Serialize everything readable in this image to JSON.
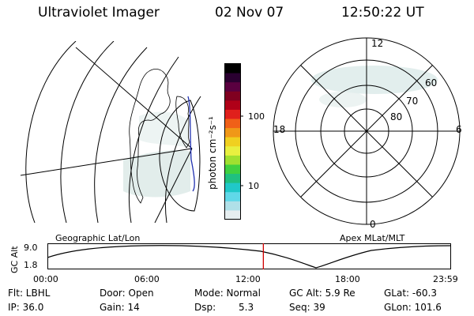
{
  "header": {
    "instrument": "Ultraviolet Imager",
    "date": "02 Nov 07",
    "time": "12:50:22 UT"
  },
  "colorbar": {
    "unit_label": "photon cm⁻²s⁻¹",
    "ticks": [
      "100",
      "10"
    ],
    "colors": [
      "#000000",
      "#2a0030",
      "#5a0040",
      "#800020",
      "#b00018",
      "#e0201c",
      "#f06018",
      "#f09818",
      "#f0d020",
      "#e8f040",
      "#a0e030",
      "#40d040",
      "#20c080",
      "#20c8c8",
      "#60d8e8",
      "#b0e0e8",
      "#e6eef0"
    ]
  },
  "right_panel": {
    "lat_labels": [
      "80",
      "70",
      "60"
    ],
    "mlt_labels": [
      "12",
      "18",
      "6",
      "0"
    ]
  },
  "timeline": {
    "left_caption": "Geographic Lat/Lon",
    "right_caption": "Apex MLat/MLT",
    "ylabel": "GC Alt",
    "y_ticks": [
      "9.0",
      "1.8"
    ],
    "x_ticks": [
      "00:00",
      "06:00",
      "12:00",
      "18:00",
      "23:59"
    ],
    "current_time_fraction": 0.535,
    "marker_color": "#d00000"
  },
  "footer": {
    "flt": "Flt: LBHL",
    "ip": "IP: 36.0",
    "door": "Door: Open",
    "gain": "Gain: 14",
    "mode": "Mode: Normal",
    "dsp_label": "Dsp:",
    "dsp_value": "5.3",
    "gc_alt": "GC Alt: 5.9 Re",
    "seq": "Seq: 39",
    "glat": "GLat: -60.3",
    "glon": "GLon: 101.6"
  }
}
